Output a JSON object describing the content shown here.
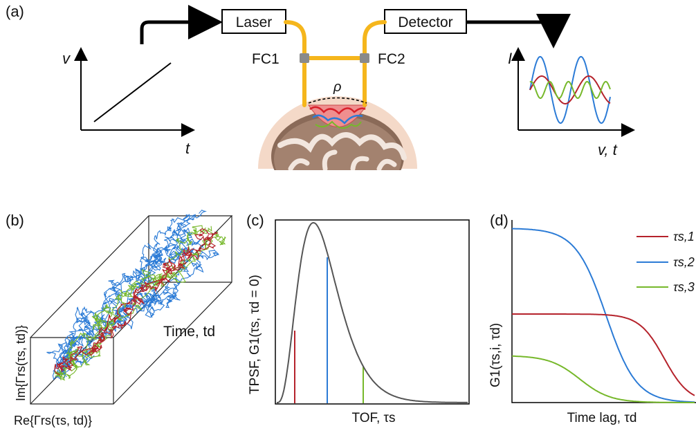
{
  "panels": {
    "a": {
      "tag": "(a)",
      "laser": "Laser",
      "detector": "Detector",
      "fc1": "FC1",
      "fc2": "FC2",
      "rho": "ρ",
      "left_y": "v",
      "left_x": "t",
      "right_y": "I",
      "right_x": "v, t"
    },
    "b": {
      "tag": "(b)",
      "ylabel": "Im{Γrs(τs, td)}",
      "xlabel": "Re{Γrs(τs, td)}",
      "zlabel": "Time, td"
    },
    "c": {
      "tag": "(c)",
      "ylabel": "TPSF, G1(τs, τd = 0)",
      "xlabel": "TOF, τs"
    },
    "d": {
      "tag": "(d)",
      "ylabel": "G1(τs,i, τd)",
      "xlabel": "Time lag, τd",
      "legend": [
        "τs,1",
        "τs,2",
        "τs,3"
      ]
    }
  },
  "colors": {
    "red": "#b5222b",
    "blue": "#2b7bd6",
    "green": "#76b82a",
    "fiber": "#f5b61c",
    "gray": "#555555"
  },
  "icons": [
    "brain-icon",
    "fiber-coupler-icon"
  ]
}
